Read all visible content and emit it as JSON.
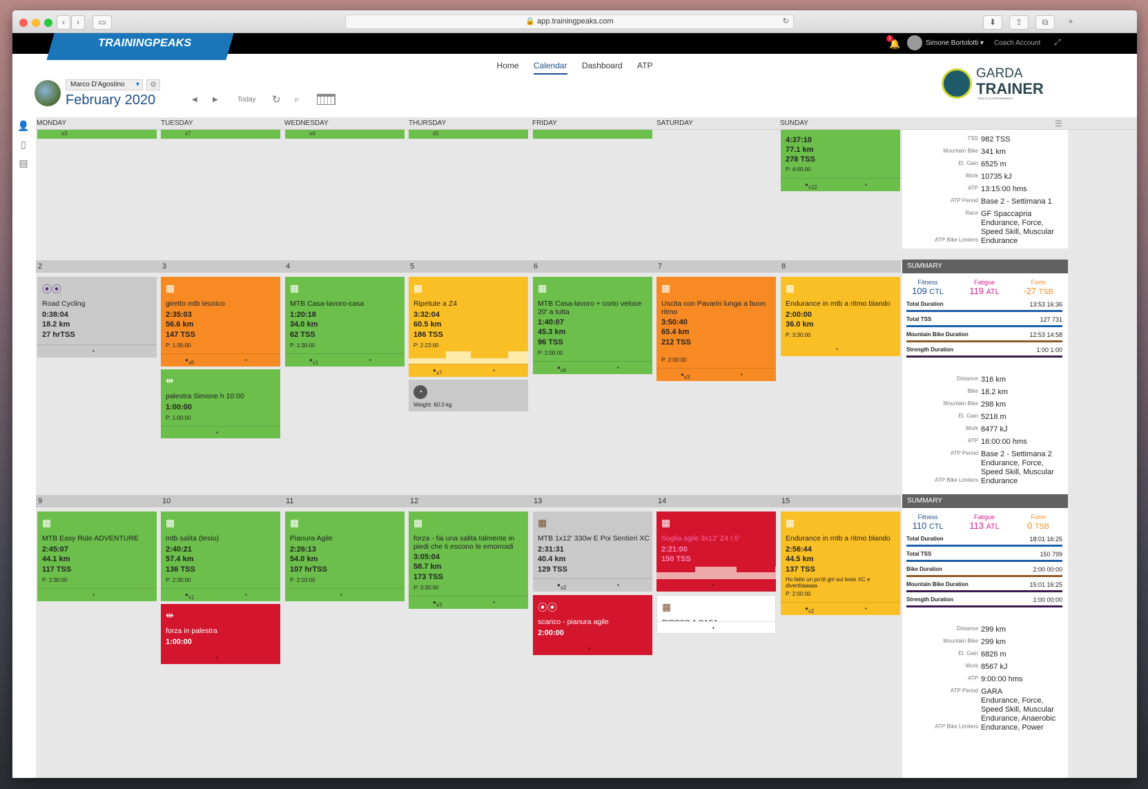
{
  "browser": {
    "url": "app.trainingpeaks.com"
  },
  "app": {
    "logo": "TRAININGPEAKS",
    "user": "Simone Bortolotti",
    "coach": "Coach Account",
    "notif": "1"
  },
  "nav": {
    "home": "Home",
    "calendar": "Calendar",
    "dashboard": "Dashboard",
    "atp": "ATP"
  },
  "athlete": {
    "name": "Marco D'Agostino",
    "month": "February 2020",
    "today": "Today"
  },
  "brand": {
    "line1": "GARDA",
    "line2": "TRAINER",
    "tag": "HEALTH & PERFORMANCE"
  },
  "days": [
    "MONDAY",
    "TUESDAY",
    "WEDNESDAY",
    "THURSDAY",
    "FRIDAY",
    "SATURDAY",
    "SUNDAY"
  ],
  "week0": {
    "top": [
      "x3",
      "x7",
      "x4",
      "x5"
    ],
    "sun": {
      "time": "4:37:10",
      "dist": "77.1 km",
      "tss": "278 TSS",
      "p": "P: 4:00:00",
      "cnt": "x12"
    },
    "summary": [
      [
        "TSS",
        "982 TSS"
      ],
      [
        "Mountain Bike",
        "341 km"
      ],
      [
        "El. Gain",
        "6525 m"
      ],
      [
        "Work",
        "10735 kJ"
      ],
      [
        "ATP",
        "13:15:00 hms"
      ],
      [
        "ATP Period",
        "Base 2 - Settimana 1"
      ],
      [
        "Race",
        "GF Spaccapria"
      ],
      [
        "",
        "Endurance, Force,"
      ],
      [
        "",
        "Speed Skill, Muscular"
      ],
      [
        "ATP Bike Limiters",
        "Endurance"
      ]
    ]
  },
  "week1": {
    "nums": [
      "2",
      "3",
      "4",
      "5",
      "6",
      "7",
      "8"
    ],
    "summary_title": "SUMMARY",
    "fit": {
      "fl": "Fitness",
      "fv": "109",
      "fu": "CTL",
      "tl": "Fatigue",
      "tv": "119",
      "tu": "ATL",
      "ol": "Form",
      "ov": "-27",
      "ou": "TSB"
    },
    "bars": [
      [
        "Total Duration",
        "13:53 16:36"
      ],
      [
        "Total TSS",
        "127 731"
      ],
      [
        "Mountain Bike Duration",
        "12:53 14:58"
      ],
      [
        "Strength Duration",
        "1:00 1:00"
      ]
    ],
    "kv": [
      [
        "Distance",
        "316 km"
      ],
      [
        "Bike",
        "18.2 km"
      ],
      [
        "Mountain Bike",
        "298 km"
      ],
      [
        "El. Gain",
        "5218 m"
      ],
      [
        "Work",
        "8477 kJ"
      ],
      [
        "ATP",
        "16:00:00 hms"
      ],
      [
        "ATP Period",
        "Base 2 - Settimana 2"
      ],
      [
        "",
        "Endurance, Force,"
      ],
      [
        "",
        "Speed Skill, Muscular"
      ],
      [
        "ATP Bike Limiters",
        "Endurance"
      ]
    ],
    "c": [
      {
        "title": "Road Cycling",
        "time": "0:38:04",
        "dist": "18.2 km",
        "tss": "27 hrTSS"
      },
      {
        "title": "giretto mtb tecnico",
        "time": "2:35:03",
        "dist": "56.6 km",
        "tss": "147 TSS",
        "p": "P: 1:30:00",
        "cnt": "x6"
      },
      {
        "title": "palestra Simone h 10:00",
        "time": "1:00:00",
        "p": "P: 1:00:00"
      },
      {
        "title": "MTB Casa-lavoro-casa",
        "time": "1:20:18",
        "dist": "34.0 km",
        "tss": "62 TSS",
        "p": "P: 1:30:00",
        "cnt": "x1"
      },
      {
        "title": "Ripetute a Z4",
        "time": "3:32:04",
        "dist": "60.5 km",
        "tss": "186 TSS",
        "p": "P: 2:23:00",
        "cnt": "x7"
      },
      {
        "title": "Weight: 60.0 kg"
      },
      {
        "title": "MTB Casa-lavoro + corto veloce 20' a tutta",
        "time": "1:40:07",
        "dist": "45.3 km",
        "tss": "96 TSS",
        "p": "P: 2:00:00",
        "cnt": "x6"
      },
      {
        "title": "Uscita con Pavarin lunga a buon ritmo",
        "time": "3:50:40",
        "dist": "65.4 km",
        "tss": "212 TSS",
        "p": "P: 2:00:00",
        "cnt": "x3"
      },
      {
        "title": "Endurance in mtb a ritmo blando",
        "time": "2:00:00",
        "dist": "36.0 km",
        "p": "P: 3:30:00"
      }
    ]
  },
  "week2": {
    "nums": [
      "9",
      "10",
      "11",
      "12",
      "13",
      "14",
      "15"
    ],
    "summary_title": "SUMMARY",
    "fit": {
      "fl": "Fitness",
      "fv": "110",
      "fu": "CTL",
      "tl": "Fatigue",
      "tv": "113",
      "tu": "ATL",
      "ol": "Form",
      "ov": "0",
      "ou": "TSB"
    },
    "bars": [
      [
        "Total Duration",
        "18:01 16:25"
      ],
      [
        "Total TSS",
        "150 799"
      ],
      [
        "Bike Duration",
        "2:00 00:00"
      ],
      [
        "Mountain Bike Duration",
        "15:01 16:25"
      ],
      [
        "Strength Duration",
        "1:00 00:00"
      ]
    ],
    "kv": [
      [
        "Distance",
        "299 km"
      ],
      [
        "Mountain Bike",
        "299 km"
      ],
      [
        "El. Gain",
        "6826 m"
      ],
      [
        "Work",
        "8567 kJ"
      ],
      [
        "ATP",
        "9:00:00 hms"
      ],
      [
        "ATP Period",
        "GARA"
      ],
      [
        "",
        "Endurance, Force,"
      ],
      [
        "",
        "Speed Skill, Muscular"
      ],
      [
        "",
        "Endurance, Anaerobic"
      ],
      [
        "ATP Bike Limiters",
        "Endurance, Power"
      ]
    ],
    "c": [
      {
        "title": "MTB Easy Ride ADVENTURE",
        "time": "2:45:07",
        "dist": "44.1 km",
        "tss": "117 TSS",
        "p": "P: 2:30:00"
      },
      {
        "title": "mtb salita (tesio)",
        "time": "2:40:21",
        "dist": "57.4 km",
        "tss": "136 TSS",
        "p": "P: 2:30:00",
        "cnt": "x1"
      },
      {
        "title": "forza in palestra",
        "time": "1:00:00"
      },
      {
        "title": "Pianura Agile",
        "time": "2:26:13",
        "dist": "54.0 km",
        "tss": "107 hrTSS",
        "p": "P: 2:10:00"
      },
      {
        "title": "forza - fai una salita talmente in piedi che ti escono le emorroidi",
        "time": "3:05:04",
        "dist": "58.7 km",
        "tss": "173 TSS",
        "p": "P: 3:30:00",
        "cnt": "x3"
      },
      {
        "title": "MTB 1x12' 330w E Poi Sentieri XC",
        "time": "2:31:31",
        "dist": "40.4 km",
        "tss": "129 TSS",
        "cnt": "x2"
      },
      {
        "title": "scarico - pianura agile",
        "time": "2:00:00"
      },
      {
        "title": "Soglia agile 3x12' Z4 r.5'",
        "time": "2:21:00",
        "tss": "150 TSS"
      },
      {
        "title": "RIPOSO A CASA"
      },
      {
        "title": "Endurance in mtb a ritmo blando",
        "time": "2:56:44",
        "dist": "44.5 km",
        "tss": "137 TSS",
        "note": "Ho fatto un po'di giri sul tesio XC e divertitaaaaa",
        "p": "P: 2:00:00",
        "cnt": "x2"
      }
    ]
  }
}
